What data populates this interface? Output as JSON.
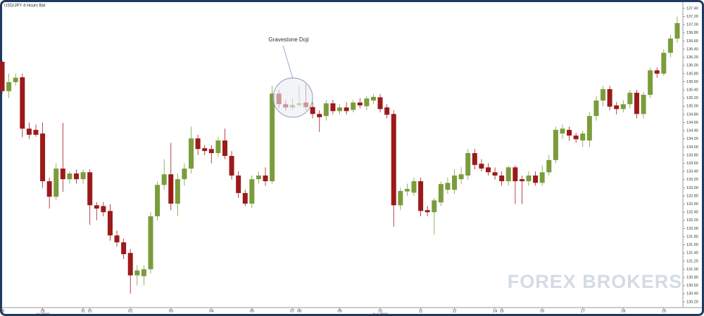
{
  "chart_data": {
    "type": "candlestick",
    "title": "USD/JPY 4 Hours Bid",
    "annotation": "Gravestone Doji",
    "watermark": "FOREX BROKERS",
    "up_color": "#7b9c3b",
    "down_color": "#9c1a1a",
    "categories": [
      "28",
      null,
      null,
      null,
      null,
      null,
      "29",
      null,
      null,
      null,
      null,
      null,
      "31",
      "01",
      null,
      null,
      null,
      null,
      null,
      "02",
      null,
      null,
      null,
      null,
      null,
      "03",
      null,
      null,
      null,
      null,
      null,
      "04",
      null,
      null,
      null,
      null,
      null,
      "05",
      null,
      null,
      null,
      null,
      null,
      "07",
      "08",
      null,
      null,
      null,
      null,
      null,
      "09",
      null,
      null,
      null,
      null,
      null,
      "10",
      null,
      null,
      null,
      null,
      null,
      "11",
      null,
      null,
      null,
      null,
      "12",
      null,
      null,
      null,
      null,
      null,
      "14",
      "15",
      null,
      null,
      null,
      null,
      null,
      "16",
      null,
      null,
      null,
      null,
      null,
      "17",
      null,
      null,
      null,
      null,
      null,
      "18",
      null,
      null,
      null,
      null,
      null,
      "19",
      null,
      null
    ],
    "sublabels": [
      null,
      null,
      null,
      null,
      null,
      null,
      "Jul 2022",
      null,
      null,
      null,
      null,
      null,
      null,
      null,
      null,
      null,
      null,
      null,
      null,
      null,
      null,
      null,
      null,
      null,
      null,
      null,
      null,
      null,
      null,
      null,
      null,
      null,
      null,
      null,
      null,
      null,
      null,
      null,
      null,
      null,
      null,
      null,
      null,
      null,
      null,
      null,
      null,
      null,
      null,
      null,
      null,
      null,
      null,
      null,
      null,
      null,
      "Aug 2022",
      null,
      null,
      null,
      null,
      null,
      null,
      null,
      null,
      null,
      null,
      null,
      null,
      null,
      null,
      null,
      null,
      null,
      null,
      null,
      null,
      null,
      null,
      null,
      null,
      null,
      null,
      null,
      null,
      null,
      null,
      null,
      null,
      null,
      null,
      null,
      null,
      null,
      null,
      null,
      null,
      null,
      null,
      null,
      null
    ],
    "open": [
      136.09,
      135.37,
      135.59,
      135.71,
      134.45,
      134.42,
      134.33,
      133.16,
      132.78,
      133.47,
      133.21,
      133.35,
      133.21,
      133.38,
      132.57,
      132.55,
      132.43,
      131.83,
      131.66,
      131.4,
      130.85,
      130.83,
      131.0,
      132.3,
      133.07,
      133.33,
      132.61,
      133.21,
      133.47,
      134.21,
      133.97,
      133.95,
      133.85,
      134.16,
      133.78,
      133.3,
      132.87,
      132.61,
      133.21,
      133.3,
      133.16,
      135.31,
      135.05,
      134.97,
      135.03,
      135.09,
      134.98,
      134.81,
      134.76,
      135.07,
      134.88,
      134.97,
      134.91,
      135.09,
      135.0,
      135.14,
      135.22,
      134.97,
      134.81,
      132.57,
      132.91,
      132.88,
      133.16,
      132.45,
      132.4,
      132.64,
      132.95,
      132.95,
      133.21,
      133.3,
      133.85,
      133.59,
      133.5,
      133.38,
      133.3,
      133.16,
      133.5,
      133.21,
      133.16,
      133.3,
      133.12,
      133.38,
      133.68,
      134.33,
      134.42,
      134.28,
      134.16,
      134.16,
      134.76,
      135.14,
      135.42,
      135.02,
      134.93,
      135.05,
      135.33,
      134.81,
      135.28,
      135.88,
      135.8,
      136.31,
      136.66
    ],
    "high": [
      136.12,
      135.8,
      135.8,
      135.8,
      134.6,
      134.55,
      134.6,
      133.25,
      133.6,
      134.59,
      133.4,
      133.45,
      133.45,
      133.45,
      132.65,
      132.65,
      132.6,
      131.95,
      131.75,
      131.5,
      131.1,
      131.1,
      132.4,
      133.15,
      133.7,
      134.1,
      133.35,
      133.6,
      134.5,
      134.3,
      134.05,
      134.05,
      134.25,
      134.45,
      133.9,
      133.4,
      132.95,
      133.3,
      133.4,
      133.5,
      135.5,
      135.4,
      135.15,
      135.2,
      135.5,
      135.54,
      135.1,
      134.9,
      135.15,
      135.15,
      135.05,
      135.1,
      135.15,
      135.2,
      135.25,
      135.3,
      135.3,
      135.05,
      134.9,
      133.0,
      133.1,
      133.25,
      133.25,
      132.55,
      132.75,
      133.15,
      133.25,
      133.45,
      133.5,
      133.95,
      133.95,
      133.7,
      133.6,
      133.5,
      133.4,
      133.55,
      133.55,
      133.3,
      133.4,
      133.4,
      133.55,
      133.8,
      134.5,
      134.55,
      134.5,
      134.35,
      134.4,
      134.85,
      135.25,
      135.5,
      135.5,
      135.1,
      135.15,
      135.4,
      135.4,
      135.35,
      135.95,
      135.95,
      136.4,
      136.75,
      137.2
    ],
    "low": [
      135.3,
      135.2,
      135.5,
      134.24,
      134.2,
      134.25,
      133.0,
      132.49,
      132.7,
      132.9,
      133.1,
      133.1,
      133.1,
      132.09,
      132.2,
      132.3,
      131.7,
      131.55,
      131.25,
      130.4,
      130.6,
      130.6,
      130.9,
      132.2,
      132.95,
      132.45,
      132.3,
      133.05,
      133.35,
      133.8,
      133.8,
      133.6,
      133.75,
      133.7,
      133.2,
      132.75,
      132.55,
      132.5,
      133.1,
      133.05,
      133.1,
      134.95,
      134.9,
      134.9,
      134.98,
      134.9,
      134.7,
      134.37,
      134.65,
      134.8,
      134.8,
      134.8,
      134.85,
      134.95,
      134.9,
      135.05,
      134.85,
      134.7,
      132.04,
      132.45,
      132.8,
      132.8,
      132.3,
      132.3,
      131.85,
      132.55,
      132.85,
      132.85,
      133.1,
      133.2,
      133.45,
      133.4,
      133.3,
      133.2,
      133.05,
      133.05,
      132.6,
      132.6,
      133.05,
      133.05,
      133.05,
      133.3,
      133.6,
      134.2,
      134.15,
      134.1,
      134.0,
      134.0,
      134.65,
      135.0,
      134.9,
      134.8,
      134.85,
      134.95,
      134.7,
      134.7,
      135.2,
      135.7,
      135.75,
      136.2,
      136.55
    ],
    "close": [
      135.37,
      135.59,
      135.7,
      134.45,
      134.3,
      134.3,
      133.16,
      132.78,
      133.47,
      133.21,
      133.35,
      133.21,
      133.38,
      132.57,
      132.49,
      132.4,
      131.83,
      131.66,
      131.37,
      130.85,
      130.97,
      131.0,
      132.3,
      133.07,
      133.33,
      132.61,
      133.21,
      133.47,
      134.21,
      133.95,
      133.9,
      133.85,
      134.16,
      133.78,
      133.3,
      132.87,
      132.61,
      133.21,
      133.3,
      133.16,
      135.31,
      135.05,
      134.97,
      135.03,
      135.07,
      134.98,
      134.81,
      134.73,
      135.07,
      134.88,
      134.97,
      134.88,
      135.09,
      135.02,
      135.19,
      135.23,
      134.93,
      134.79,
      132.57,
      132.92,
      132.97,
      133.16,
      132.43,
      132.4,
      132.69,
      133.09,
      133.12,
      133.3,
      133.33,
      133.85,
      133.56,
      133.47,
      133.38,
      133.3,
      133.16,
      133.5,
      133.16,
      133.16,
      133.3,
      133.12,
      133.38,
      133.68,
      134.42,
      134.45,
      134.28,
      134.19,
      134.33,
      134.76,
      135.14,
      135.42,
      134.99,
      134.93,
      135.05,
      135.33,
      134.81,
      135.28,
      135.88,
      135.8,
      136.31,
      136.66,
      137.04
    ],
    "ylim": [
      130.06,
      137.52
    ],
    "yticks": [
      {
        "value": 130.2,
        "label": "130.20"
      },
      {
        "value": 130.4,
        "label": "130.40"
      },
      {
        "value": 130.6,
        "label": "130.60"
      },
      {
        "value": 130.8,
        "label": "130.80"
      },
      {
        "value": 131.0,
        "label": "131.00"
      },
      {
        "value": 131.2,
        "label": "131.20"
      },
      {
        "value": 131.4,
        "label": "131.40"
      },
      {
        "value": 131.6,
        "label": "131.60"
      },
      {
        "value": 131.8,
        "label": "131.80"
      },
      {
        "value": 132.0,
        "label": "132.00"
      },
      {
        "value": 132.2,
        "label": "132.20"
      },
      {
        "value": 132.4,
        "label": "132.40"
      },
      {
        "value": 132.6,
        "label": "132.60"
      },
      {
        "value": 132.8,
        "label": "132.80"
      },
      {
        "value": 133.0,
        "label": "133.00"
      },
      {
        "value": 133.2,
        "label": "133.20"
      },
      {
        "value": 133.4,
        "label": "133.40"
      },
      {
        "value": 133.6,
        "label": "133.60"
      },
      {
        "value": 133.8,
        "label": "133.80"
      },
      {
        "value": 134.0,
        "label": "134.00"
      },
      {
        "value": 134.2,
        "label": "134.20"
      },
      {
        "value": 134.4,
        "label": "134.40"
      },
      {
        "value": 134.6,
        "label": "134.60"
      },
      {
        "value": 134.8,
        "label": "134.80"
      },
      {
        "value": 135.0,
        "label": "135.00"
      },
      {
        "value": 135.2,
        "label": "135.20"
      },
      {
        "value": 135.4,
        "label": "135.40"
      },
      {
        "value": 135.6,
        "label": "135.60"
      },
      {
        "value": 135.8,
        "label": "135.80"
      },
      {
        "value": 136.0,
        "label": "136.00"
      },
      {
        "value": 136.2,
        "label": "136.20"
      },
      {
        "value": 136.4,
        "label": "136.40"
      },
      {
        "value": 136.6,
        "label": "136.60"
      },
      {
        "value": 136.8,
        "label": "136.80"
      },
      {
        "value": 137.0,
        "label": "137.00"
      },
      {
        "value": 137.2,
        "label": "137.20"
      },
      {
        "value": 137.4,
        "label": "137.40"
      }
    ]
  }
}
